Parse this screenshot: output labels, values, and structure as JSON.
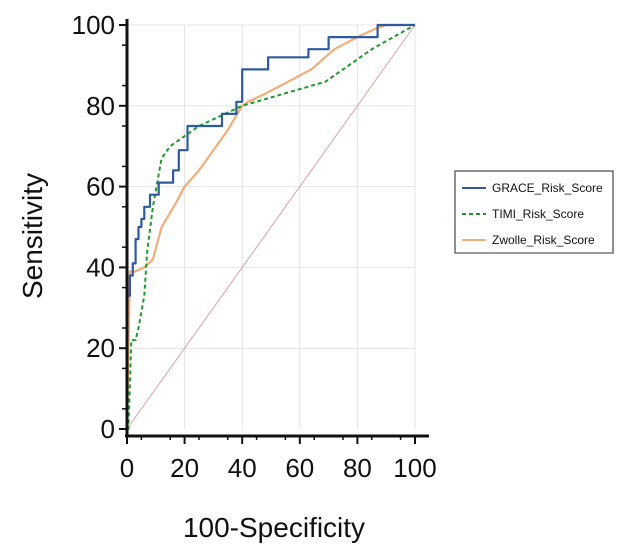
{
  "chart_data": {
    "type": "line",
    "xlabel": "100-Specificity",
    "ylabel": "Sensitivity",
    "xlim": [
      0,
      100
    ],
    "ylim": [
      0,
      100
    ],
    "x_ticks": [
      "0",
      "20",
      "40",
      "60",
      "80",
      "100"
    ],
    "y_ticks": [
      "0",
      "20",
      "40",
      "60",
      "80",
      "100"
    ],
    "grid": true,
    "legend_position": "right",
    "reference_line": {
      "points": [
        [
          0,
          0
        ],
        [
          100,
          100
        ]
      ],
      "color": "#d9a3a8"
    },
    "series": [
      {
        "name": "GRACE_Risk_Score",
        "color": "#2f5b9e",
        "style": "solid",
        "step": true,
        "points": [
          [
            0,
            0
          ],
          [
            0,
            33
          ],
          [
            1,
            33
          ],
          [
            1,
            38
          ],
          [
            2,
            38
          ],
          [
            2,
            41
          ],
          [
            3,
            41
          ],
          [
            3,
            47
          ],
          [
            4,
            47
          ],
          [
            4,
            50
          ],
          [
            5,
            50
          ],
          [
            5,
            52
          ],
          [
            6,
            52
          ],
          [
            6,
            55
          ],
          [
            7,
            55
          ],
          [
            7,
            55
          ],
          [
            8,
            55
          ],
          [
            8,
            58
          ],
          [
            10,
            58
          ],
          [
            10,
            58
          ],
          [
            11,
            58
          ],
          [
            11,
            61
          ],
          [
            16,
            61
          ],
          [
            16,
            64
          ],
          [
            18,
            64
          ],
          [
            18,
            69
          ],
          [
            20,
            69
          ],
          [
            20,
            69
          ],
          [
            21,
            69
          ],
          [
            21,
            75
          ],
          [
            30,
            75
          ],
          [
            30,
            75
          ],
          [
            33,
            75
          ],
          [
            33,
            78
          ],
          [
            37,
            78
          ],
          [
            37,
            78
          ],
          [
            38,
            78
          ],
          [
            38,
            81
          ],
          [
            40,
            81
          ],
          [
            40,
            89
          ],
          [
            49,
            89
          ],
          [
            49,
            92
          ],
          [
            63,
            92
          ],
          [
            63,
            94
          ],
          [
            70,
            94
          ],
          [
            70,
            97
          ],
          [
            87,
            97
          ],
          [
            87,
            100
          ],
          [
            100,
            100
          ]
        ]
      },
      {
        "name": "TIMI_Risk_Score",
        "color": "#1f9a2a",
        "style": "dashed",
        "step": false,
        "points": [
          [
            0,
            0
          ],
          [
            0.5,
            0
          ],
          [
            1,
            11
          ],
          [
            1.5,
            22
          ],
          [
            3,
            22
          ],
          [
            4,
            25
          ],
          [
            6,
            33
          ],
          [
            7,
            44
          ],
          [
            9,
            55
          ],
          [
            12,
            67
          ],
          [
            15,
            70
          ],
          [
            25,
            75
          ],
          [
            40,
            80
          ],
          [
            69,
            86
          ],
          [
            75,
            89
          ],
          [
            85,
            94
          ],
          [
            100,
            100
          ]
        ]
      },
      {
        "name": "Zwolle_Risk_Score",
        "color": "#f2ad7a",
        "style": "solid",
        "step": false,
        "points": [
          [
            0,
            0
          ],
          [
            1,
            39
          ],
          [
            3,
            39
          ],
          [
            6,
            40
          ],
          [
            9,
            42
          ],
          [
            12,
            50
          ],
          [
            17,
            56
          ],
          [
            20,
            60
          ],
          [
            25,
            64
          ],
          [
            30,
            69
          ],
          [
            35,
            74
          ],
          [
            40,
            80
          ],
          [
            42,
            81
          ],
          [
            48,
            83
          ],
          [
            56,
            86
          ],
          [
            64,
            89
          ],
          [
            72,
            94
          ],
          [
            80,
            97
          ],
          [
            86,
            99
          ],
          [
            90,
            100
          ],
          [
            100,
            100
          ]
        ]
      }
    ]
  }
}
